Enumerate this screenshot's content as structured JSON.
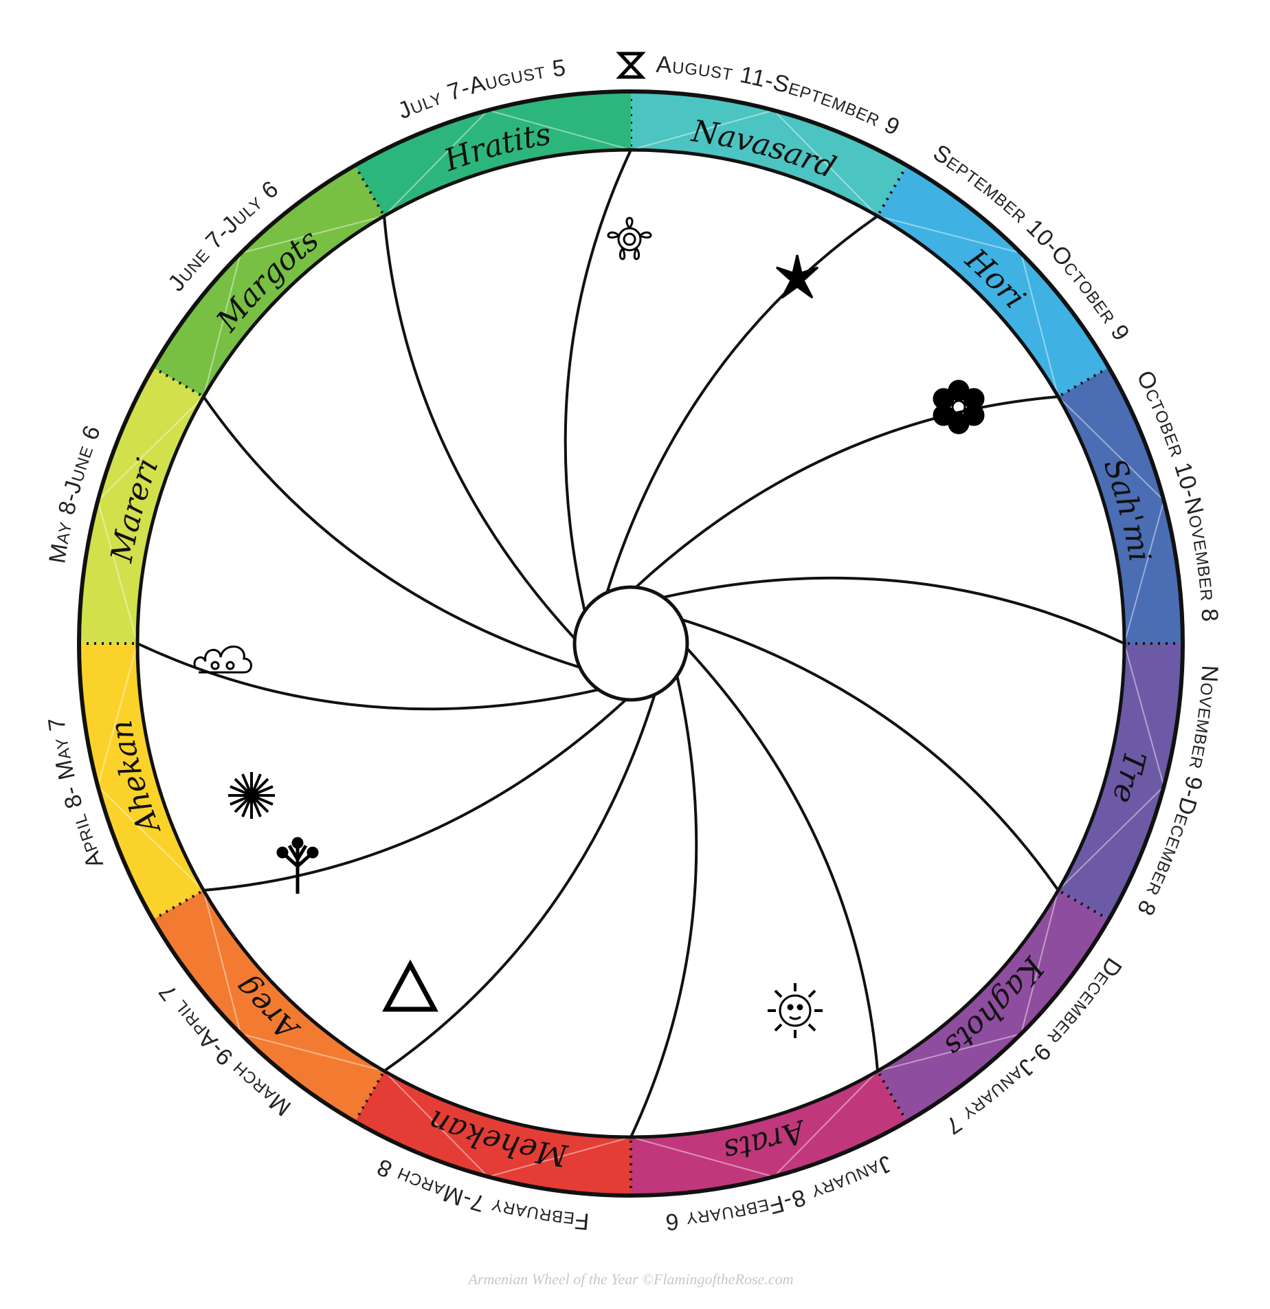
{
  "months": [
    {
      "name": "Navasard",
      "dates": "August 11-September 9",
      "color": "#4cc4c2"
    },
    {
      "name": "Hori",
      "dates": "September 10-October 9",
      "color": "#3fb2e3"
    },
    {
      "name": "Sah'mi",
      "dates": "October 10-November 8",
      "color": "#4b6db4"
    },
    {
      "name": "Tre",
      "dates": "November 9-December 8",
      "color": "#6c5aa6"
    },
    {
      "name": "Kaghots",
      "dates": "December 9-January 7",
      "color": "#8f4d9f"
    },
    {
      "name": "Arats",
      "dates": "January 8-February 6",
      "color": "#c0387b"
    },
    {
      "name": "Mehekan",
      "dates": "February 7-March 8",
      "color": "#e43d36"
    },
    {
      "name": "Areg",
      "dates": "March 9-April 7",
      "color": "#f37b31"
    },
    {
      "name": "Ahekan",
      "dates": "April 8- May 7",
      "color": "#fbd22a"
    },
    {
      "name": "Mareri",
      "dates": "May 8-June 6",
      "color": "#d2e04c"
    },
    {
      "name": "Margots",
      "dates": "June 7-July 6",
      "color": "#78c043"
    },
    {
      "name": "Hratits",
      "dates": "July 7-August 5",
      "color": "#2db67b"
    }
  ],
  "footer": "Armenian Wheel of the Year ©FlamingoftheRose.com"
}
